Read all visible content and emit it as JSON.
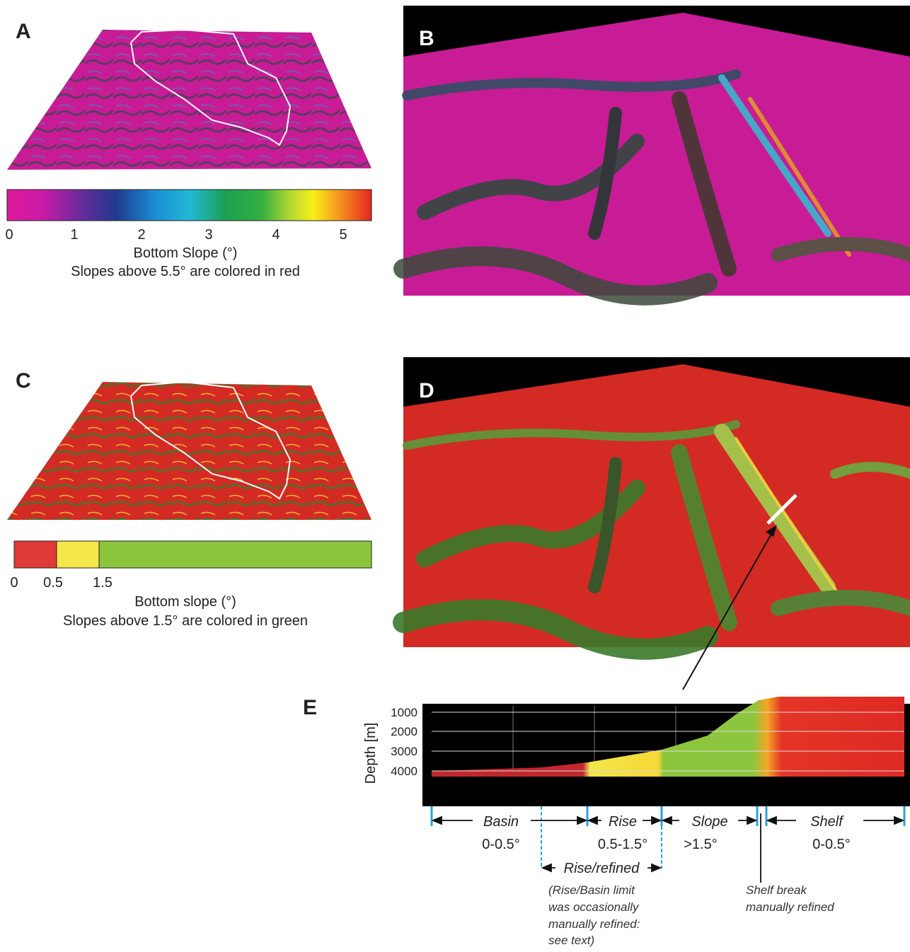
{
  "panel_a": {
    "label": "A",
    "colorbar": {
      "ticks": [
        0,
        1,
        2,
        3,
        4,
        5
      ],
      "title": "Bottom Slope (°)",
      "note": "Slopes above 5.5° are colored in red"
    }
  },
  "panel_b": {
    "label": "B"
  },
  "panel_c": {
    "label": "C",
    "colorbar": {
      "ticks": [
        0,
        0.5,
        1.5
      ],
      "title": "Bottom slope (°)",
      "note": "Slopes above 1.5° are colored in green"
    }
  },
  "panel_d": {
    "label": "D"
  },
  "panel_e": {
    "label": "E",
    "y_label": "Depth [m]",
    "yticks": [
      1000,
      2000,
      3000,
      4000
    ],
    "zones": [
      {
        "name": "Basin",
        "range": "0-0.5°"
      },
      {
        "name": "Rise",
        "range": "0.5-1.5°"
      },
      {
        "name": "Slope",
        "range": ">1.5°"
      },
      {
        "name": "Shelf",
        "range": "0-0.5°"
      }
    ],
    "refined": {
      "name": "Rise/refined",
      "note": [
        "(Rise/Basin limit",
        "was occasionally",
        "manually refined:",
        "see text)"
      ]
    },
    "shelf_break": [
      "Shelf break",
      "manually refined"
    ]
  }
}
